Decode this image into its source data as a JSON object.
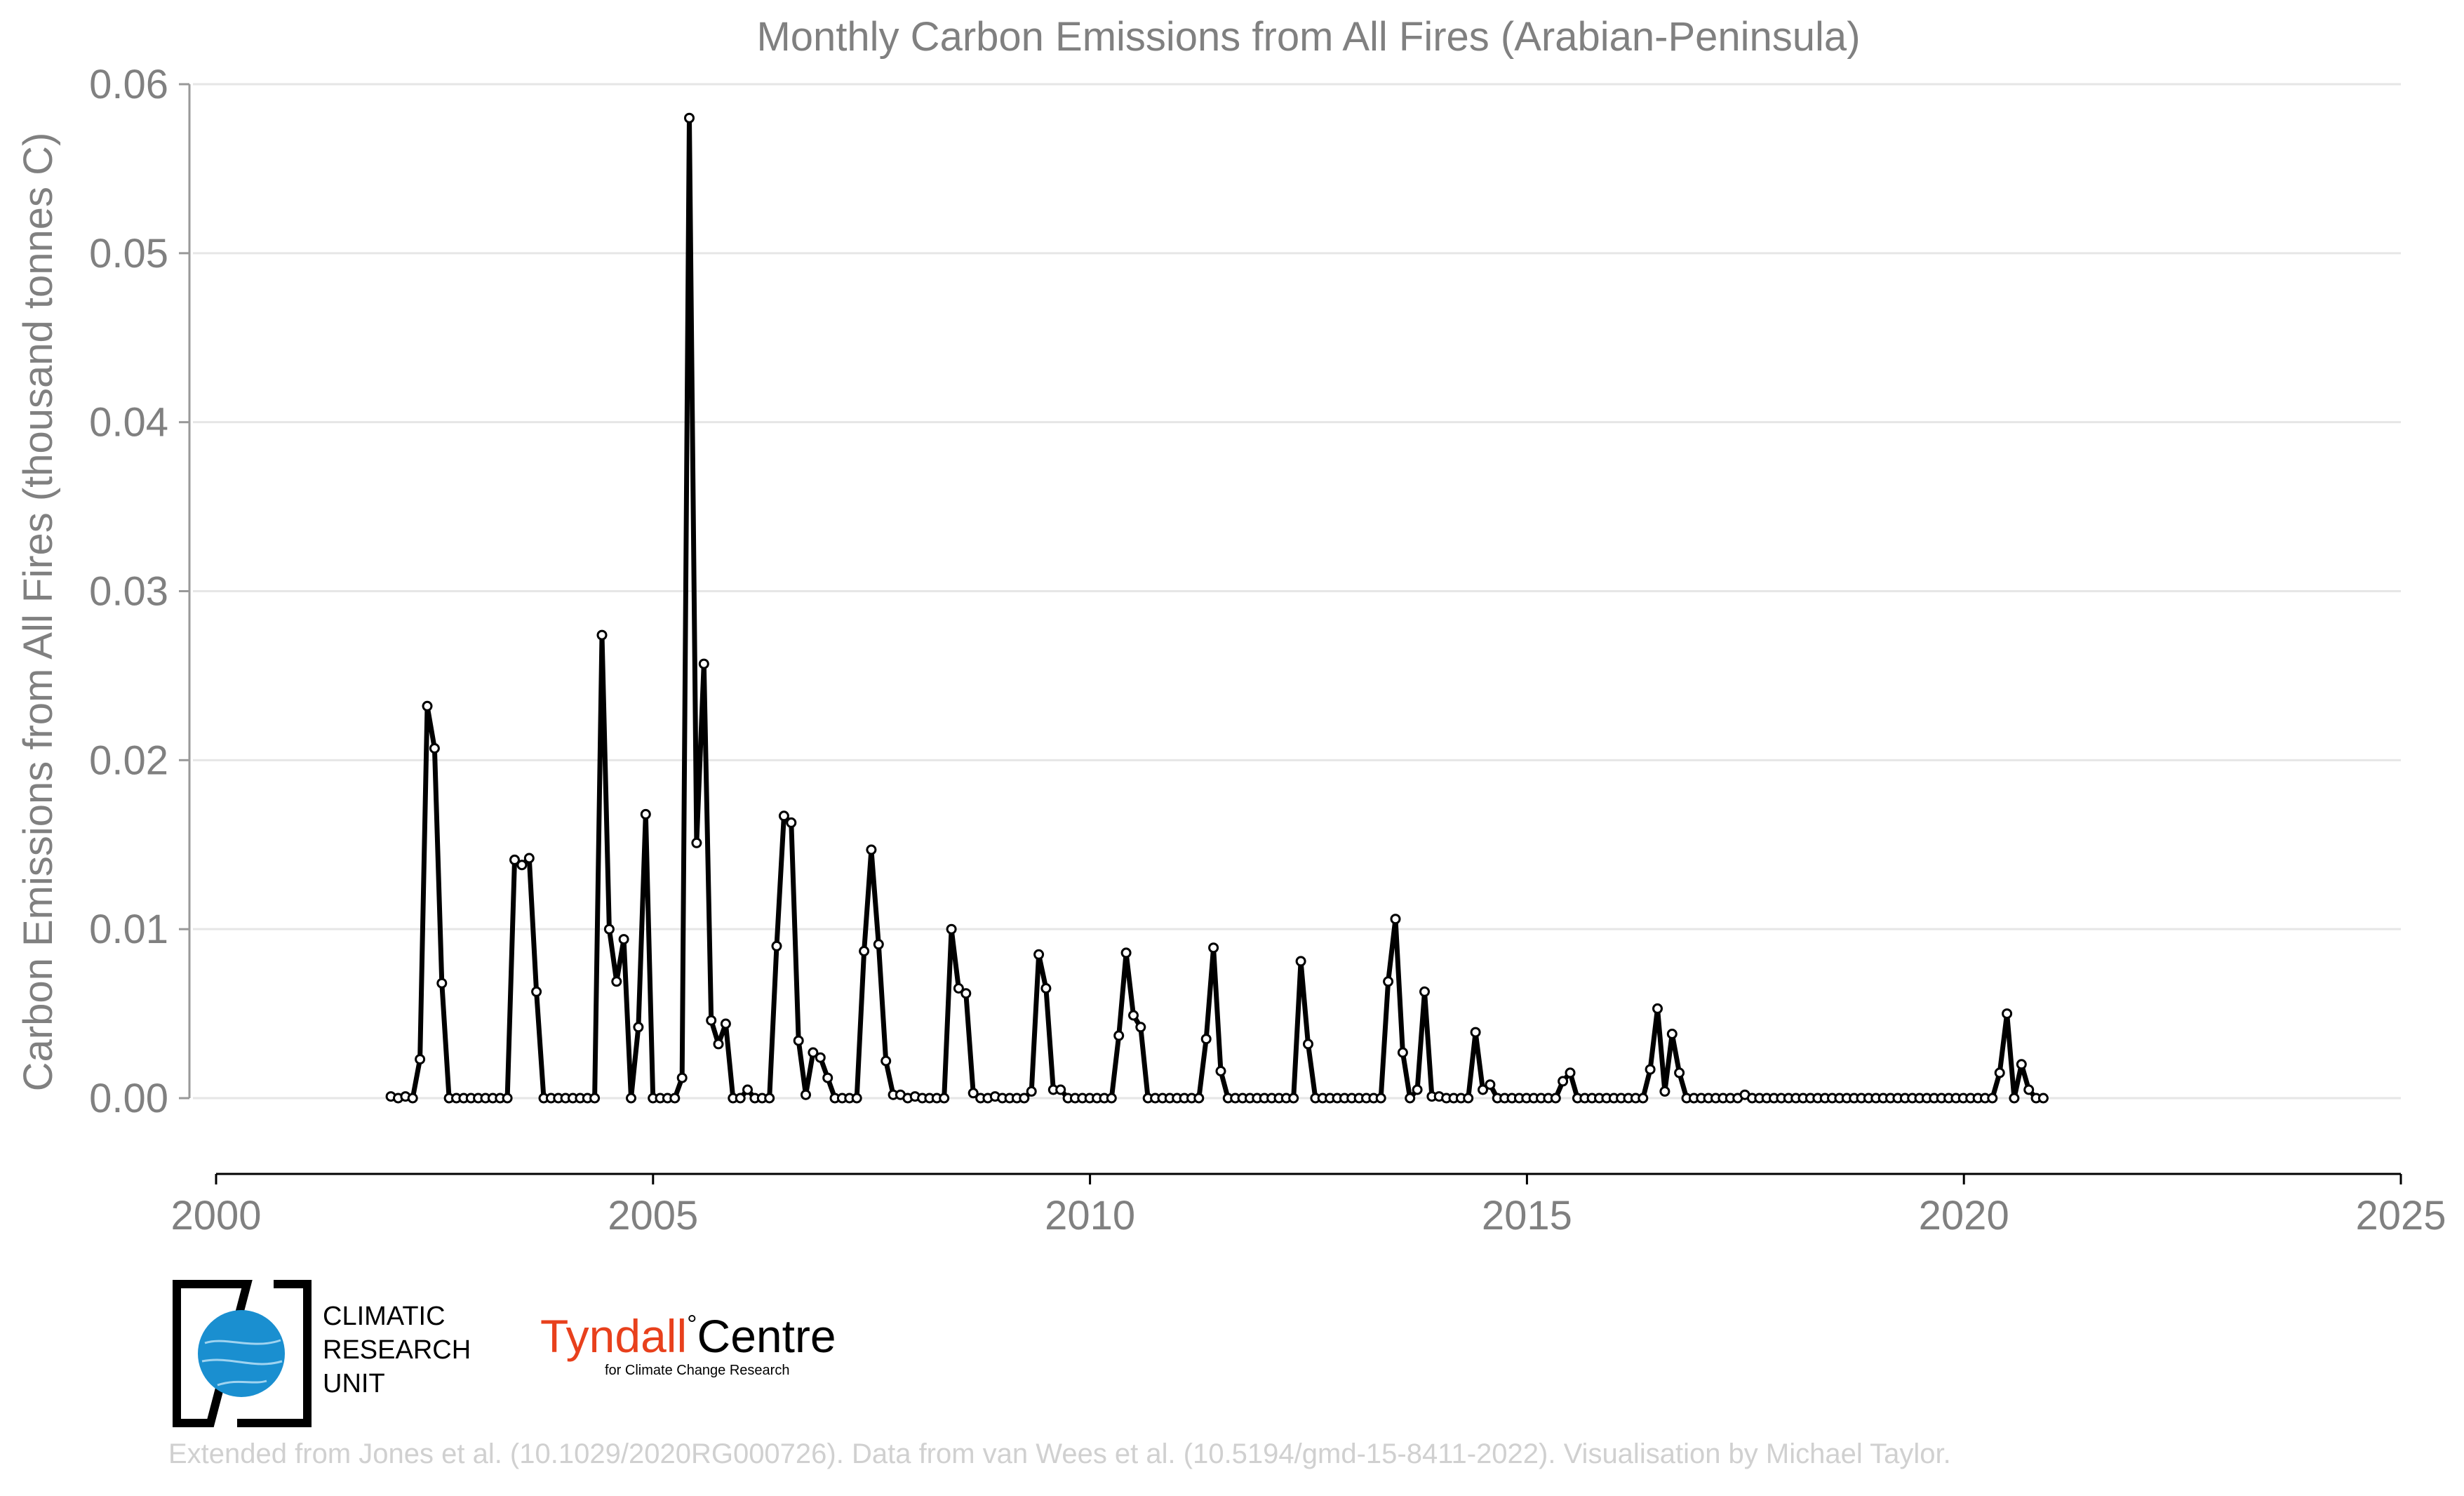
{
  "chart_data": {
    "type": "line",
    "title": "Monthly Carbon Emissions from All Fires (Arabian-Peninsula)",
    "ylabel": "Carbon Emissions from All Fires (thousand tonnes C)",
    "xlabel": "",
    "xlim": [
      2000,
      2025
    ],
    "ylim": [
      -0.0045,
      0.06
    ],
    "xticks": [
      "2000",
      "2005",
      "2010",
      "2015",
      "2020",
      "2025"
    ],
    "yticks": [
      "0.00",
      "0.01",
      "0.02",
      "0.03",
      "0.04",
      "0.05",
      "0.06"
    ],
    "grid": "horizontal",
    "line_color": "#000000",
    "marker": "white-circle",
    "series": [
      {
        "start_year": 2002.0,
        "step": 0.0833,
        "values": [
          0.0001,
          0.0,
          0.0001,
          0.0,
          0.0023,
          0.0232,
          0.0207,
          0.0068,
          0.0,
          0.0,
          0.0,
          0.0,
          0.0,
          0.0,
          0.0,
          0.0,
          0.0,
          0.0141,
          0.0138,
          0.0142,
          0.0063,
          0.0,
          0.0,
          0.0,
          0.0,
          0.0,
          0.0,
          0.0,
          0.0,
          0.0274,
          0.01,
          0.0069,
          0.0094,
          0.0,
          0.0042,
          0.0168,
          0.0,
          0.0,
          0.0,
          0.0,
          0.0012,
          0.058,
          0.0151,
          0.0257,
          0.0046,
          0.0032,
          0.0044,
          0.0,
          0.0,
          0.0005,
          0.0,
          0.0,
          0.0,
          0.009,
          0.0167,
          0.0163,
          0.0034,
          0.0002,
          0.0027,
          0.0024,
          0.0012,
          0.0,
          0.0,
          0.0,
          0.0,
          0.0087,
          0.0147,
          0.0091,
          0.0022,
          0.0002,
          0.0002,
          0.0,
          0.0001,
          0.0,
          0.0,
          0.0,
          0.0,
          0.01,
          0.0065,
          0.0062,
          0.0003,
          0.0,
          0.0,
          0.0001,
          0.0,
          0.0,
          0.0,
          0.0,
          0.0004,
          0.0085,
          0.0065,
          0.0005,
          0.0005,
          0.0,
          0.0,
          0.0,
          0.0,
          0.0,
          0.0,
          0.0,
          0.0037,
          0.0086,
          0.0049,
          0.0042,
          0.0,
          0.0,
          0.0,
          0.0,
          0.0,
          0.0,
          0.0,
          0.0,
          0.0035,
          0.0089,
          0.0016,
          0.0,
          0.0,
          0.0,
          0.0,
          0.0,
          0.0,
          0.0,
          0.0,
          0.0,
          0.0,
          0.0081,
          0.0032,
          0.0,
          0.0,
          0.0,
          0.0,
          0.0,
          0.0,
          0.0,
          0.0,
          0.0,
          0.0,
          0.0069,
          0.0106,
          0.0027,
          0.0,
          0.0005,
          0.0063,
          0.0001,
          0.0001,
          0.0,
          0.0,
          0.0,
          0.0,
          0.0039,
          0.0005,
          0.0008,
          0.0,
          0.0,
          0.0,
          0.0,
          0.0,
          0.0,
          0.0,
          0.0,
          0.0,
          0.001,
          0.0015,
          0.0,
          0.0,
          0.0,
          0.0,
          0.0,
          0.0,
          0.0,
          0.0,
          0.0,
          0.0,
          0.0017,
          0.0053,
          0.0004,
          0.0038,
          0.0015,
          0.0,
          0.0,
          0.0,
          0.0,
          0.0,
          0.0,
          0.0,
          0.0,
          0.0002,
          0.0,
          0.0,
          0.0,
          0.0,
          0.0,
          0.0,
          0.0,
          0.0,
          0.0,
          0.0,
          0.0,
          0.0,
          0.0,
          0.0,
          0.0,
          0.0,
          0.0,
          0.0,
          0.0,
          0.0,
          0.0,
          0.0,
          0.0,
          0.0,
          0.0,
          0.0,
          0.0,
          0.0,
          0.0,
          0.0,
          0.0,
          0.0,
          0.0,
          0.0,
          0.0015,
          0.005,
          0.0,
          0.002,
          0.0005,
          0.0,
          0.0
        ]
      }
    ]
  },
  "logos": {
    "cru": {
      "line1": "CLIMATIC",
      "line2": "RESEARCH",
      "line3": "UNIT",
      "color": "#1a8fd0"
    },
    "tyndall": {
      "name_red": "Tyndall",
      "degree": "°",
      "name_black": "Centre",
      "subtitle": "for Climate Change Research",
      "color": "#e8401c"
    }
  },
  "credit": "Extended from Jones et al. (10.1029/2020RG000726). Data from van Wees et al. (10.5194/gmd-15-8411-2022). Visualisation by Michael Taylor."
}
